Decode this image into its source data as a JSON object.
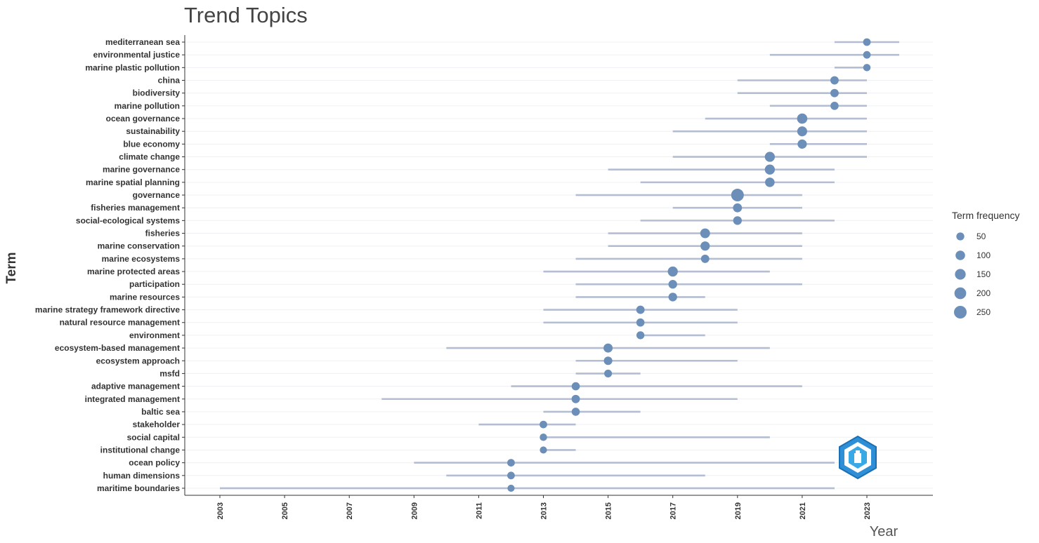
{
  "chart_data": {
    "type": "scatter",
    "title": "Trend Topics",
    "xlabel": "Year",
    "ylabel": "Term",
    "xlim": [
      2002,
      2025
    ],
    "x_ticks": [
      "2003",
      "2005",
      "2007",
      "2009",
      "2011",
      "2013",
      "2015",
      "2017",
      "2019",
      "2021",
      "2023"
    ],
    "grid": true,
    "legend": {
      "title": "Term frequency",
      "placement": "right",
      "entries": [
        "50",
        "100",
        "150",
        "200",
        "250"
      ],
      "sizes": [
        50,
        100,
        150,
        200,
        250
      ]
    },
    "colors": {
      "point": "#6b8fb8",
      "range_line": "#b4bed2",
      "grid": "#eef0f4",
      "axis": "#333333"
    },
    "terms": [
      {
        "term": "mediterranean sea",
        "year": 2023,
        "start": 2022,
        "end": 2024,
        "freq": 40
      },
      {
        "term": "environmental justice",
        "year": 2023,
        "start": 2020,
        "end": 2024,
        "freq": 40
      },
      {
        "term": "marine plastic pollution",
        "year": 2023,
        "start": 2022,
        "end": 2023,
        "freq": 35
      },
      {
        "term": "china",
        "year": 2022,
        "start": 2019,
        "end": 2023,
        "freq": 60
      },
      {
        "term": "biodiversity",
        "year": 2022,
        "start": 2019,
        "end": 2023,
        "freq": 60
      },
      {
        "term": "marine pollution",
        "year": 2022,
        "start": 2020,
        "end": 2023,
        "freq": 55
      },
      {
        "term": "ocean governance",
        "year": 2021,
        "start": 2018,
        "end": 2023,
        "freq": 130
      },
      {
        "term": "sustainability",
        "year": 2021,
        "start": 2017,
        "end": 2023,
        "freq": 115
      },
      {
        "term": "blue economy",
        "year": 2021,
        "start": 2020,
        "end": 2023,
        "freq": 90
      },
      {
        "term": "climate change",
        "year": 2020,
        "start": 2017,
        "end": 2023,
        "freq": 120
      },
      {
        "term": "marine governance",
        "year": 2020,
        "start": 2015,
        "end": 2022,
        "freq": 120
      },
      {
        "term": "marine spatial planning",
        "year": 2020,
        "start": 2016,
        "end": 2022,
        "freq": 100
      },
      {
        "term": "governance",
        "year": 2019,
        "start": 2014,
        "end": 2021,
        "freq": 250
      },
      {
        "term": "fisheries management",
        "year": 2019,
        "start": 2017,
        "end": 2021,
        "freq": 80
      },
      {
        "term": "social-ecological systems",
        "year": 2019,
        "start": 2016,
        "end": 2022,
        "freq": 70
      },
      {
        "term": "fisheries",
        "year": 2018,
        "start": 2015,
        "end": 2021,
        "freq": 110
      },
      {
        "term": "marine conservation",
        "year": 2018,
        "start": 2015,
        "end": 2021,
        "freq": 90
      },
      {
        "term": "marine ecosystems",
        "year": 2018,
        "start": 2014,
        "end": 2021,
        "freq": 60
      },
      {
        "term": "marine protected areas",
        "year": 2017,
        "start": 2013,
        "end": 2020,
        "freq": 120
      },
      {
        "term": "participation",
        "year": 2017,
        "start": 2014,
        "end": 2021,
        "freq": 70
      },
      {
        "term": "marine resources",
        "year": 2017,
        "start": 2014,
        "end": 2018,
        "freq": 70
      },
      {
        "term": "marine strategy framework directive",
        "year": 2016,
        "start": 2013,
        "end": 2019,
        "freq": 60
      },
      {
        "term": "natural resource management",
        "year": 2016,
        "start": 2013,
        "end": 2019,
        "freq": 55
      },
      {
        "term": "environment",
        "year": 2016,
        "start": 2016,
        "end": 2018,
        "freq": 50
      },
      {
        "term": "ecosystem-based management",
        "year": 2015,
        "start": 2010,
        "end": 2020,
        "freq": 85
      },
      {
        "term": "ecosystem approach",
        "year": 2015,
        "start": 2014,
        "end": 2019,
        "freq": 65
      },
      {
        "term": "msfd",
        "year": 2015,
        "start": 2014,
        "end": 2016,
        "freq": 45
      },
      {
        "term": "adaptive management",
        "year": 2014,
        "start": 2012,
        "end": 2021,
        "freq": 55
      },
      {
        "term": "integrated management",
        "year": 2014,
        "start": 2008,
        "end": 2019,
        "freq": 60
      },
      {
        "term": "baltic sea",
        "year": 2014,
        "start": 2013,
        "end": 2016,
        "freq": 55
      },
      {
        "term": "stakeholder",
        "year": 2013,
        "start": 2011,
        "end": 2014,
        "freq": 40
      },
      {
        "term": "social capital",
        "year": 2013,
        "start": 2013,
        "end": 2020,
        "freq": 35
      },
      {
        "term": "institutional change",
        "year": 2013,
        "start": 2013,
        "end": 2014,
        "freq": 30
      },
      {
        "term": "ocean policy",
        "year": 2012,
        "start": 2009,
        "end": 2022,
        "freq": 40
      },
      {
        "term": "human dimensions",
        "year": 2012,
        "start": 2010,
        "end": 2018,
        "freq": 40
      },
      {
        "term": "maritime boundaries",
        "year": 2012,
        "start": 2003,
        "end": 2022,
        "freq": 30
      }
    ]
  }
}
